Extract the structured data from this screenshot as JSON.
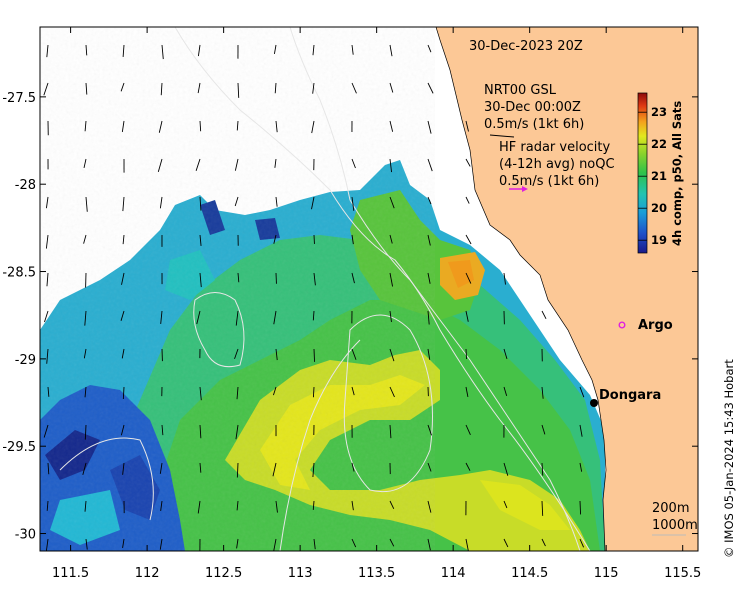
{
  "map": {
    "timestamp": "30-Dec-2023 20Z",
    "legend_model": {
      "line1": "NRT00 GSL",
      "line2": "30-Dec 00:00Z",
      "line3": "0.5m/s (1kt 6h)"
    },
    "legend_radar": {
      "line1": "HF radar velocity",
      "line2": "(4-12h avg) noQC",
      "line3": "0.5m/s (1kt 6h)"
    },
    "places": [
      {
        "name": "Argo",
        "lon": 114.78,
        "lat": -28.81,
        "marker": "open-circle",
        "color": "#e020e0"
      },
      {
        "name": "Dongara",
        "lon": 114.93,
        "lat": -29.26,
        "marker": "filled-circle",
        "color": "#000000"
      }
    ],
    "depth_legend": {
      "line1": "200m",
      "line2": "1000m"
    },
    "credit": "© IMOS 05-Jan-2024 15:43 Hobart",
    "colors": {
      "land": "#fcc896",
      "radar_arrow": "#e020e0"
    }
  },
  "axes": {
    "x_ticks": [
      "111.5",
      "112",
      "112.5",
      "113",
      "113.5",
      "114",
      "114.5",
      "115",
      "115.5"
    ],
    "y_ticks": [
      "-27.5",
      "-28",
      "-28.5",
      "-29",
      "-29.5",
      "-30"
    ],
    "x_range": [
      111.3,
      115.6
    ],
    "y_range": [
      -30.1,
      -27.1
    ]
  },
  "colorbar": {
    "label": "4h comp, p50, All Sats",
    "ticks": [
      "19",
      "20",
      "21",
      "22",
      "23"
    ],
    "range": [
      18.6,
      23.6
    ]
  }
}
